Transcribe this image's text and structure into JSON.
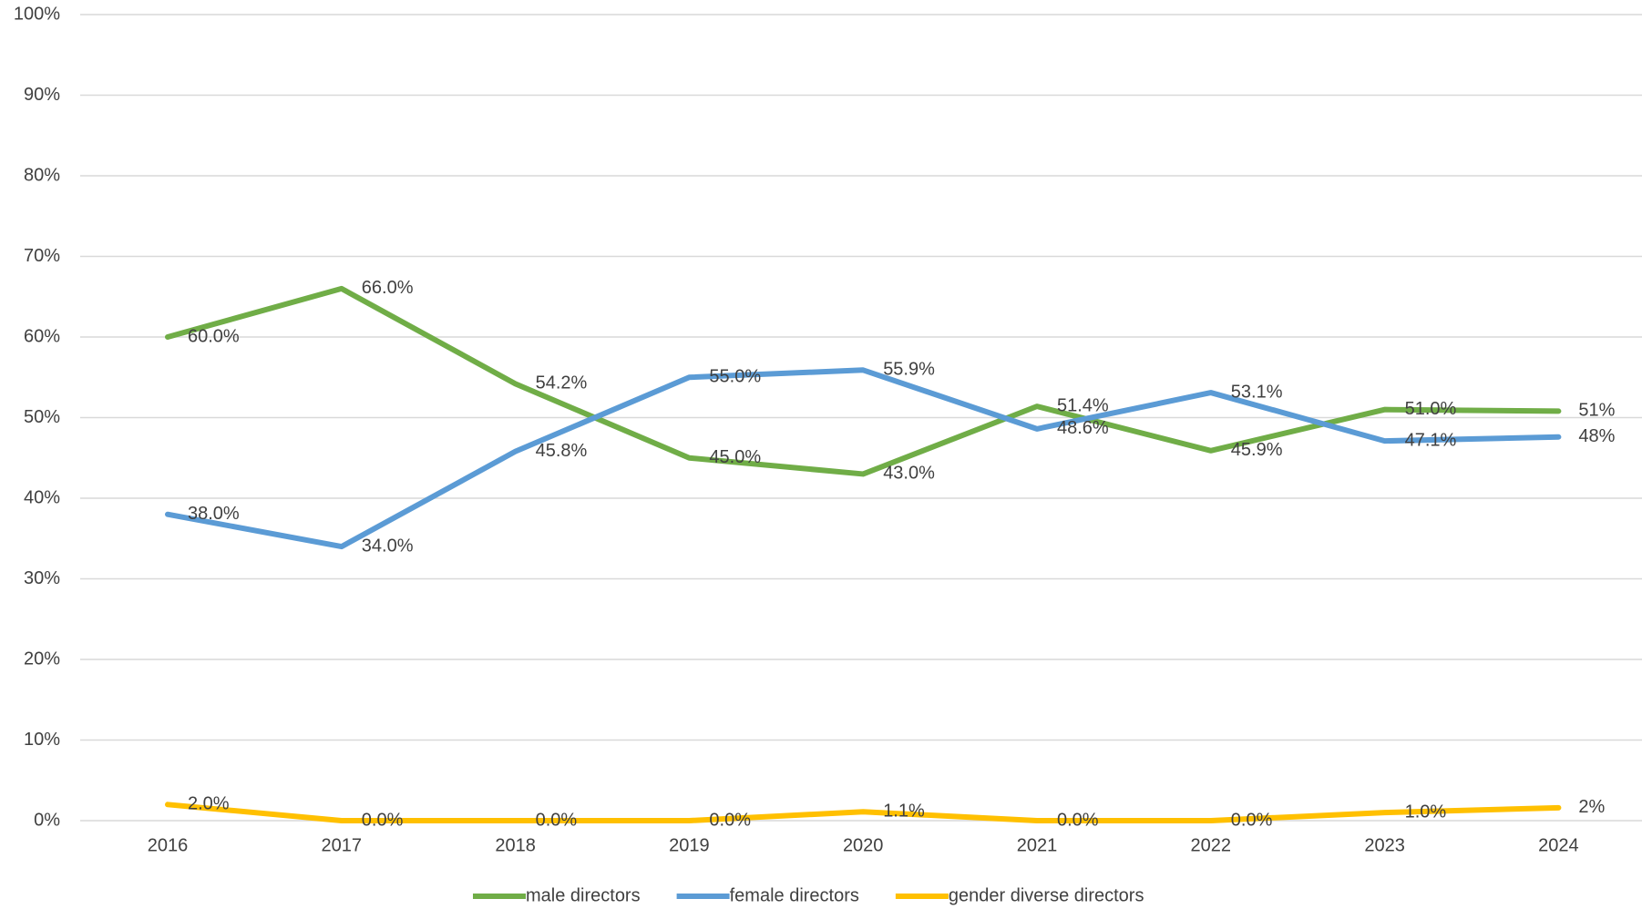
{
  "chart_data": {
    "type": "line",
    "categories": [
      "2016",
      "2017",
      "2018",
      "2019",
      "2020",
      "2021",
      "2022",
      "2023",
      "2024"
    ],
    "series": [
      {
        "name": "male directors",
        "color": "#70ad47",
        "values": [
          60.0,
          66.0,
          54.2,
          45.0,
          43.0,
          51.4,
          45.9,
          51.0,
          50.8
        ],
        "value_labels": [
          "60.0%",
          "66.0%",
          "54.2%",
          "45.0%",
          "43.0%",
          "51.4%",
          "45.9%",
          "51.0%",
          "51%"
        ]
      },
      {
        "name": "female directors",
        "color": "#5b9bd5",
        "values": [
          38.0,
          34.0,
          45.8,
          55.0,
          55.9,
          48.6,
          53.1,
          47.1,
          47.6
        ],
        "value_labels": [
          "38.0%",
          "34.0%",
          "45.8%",
          "55.0%",
          "55.9%",
          "48.6%",
          "53.1%",
          "47.1%",
          "48%"
        ]
      },
      {
        "name": "gender diverse directors",
        "color": "#ffc000",
        "values": [
          2.0,
          0.0,
          0.0,
          0.0,
          1.1,
          0.0,
          0.0,
          1.0,
          1.6
        ],
        "value_labels": [
          "2.0%",
          "0.0%",
          "0.0%",
          "0.0%",
          "1.1%",
          "0.0%",
          "0.0%",
          "1.0%",
          "2%"
        ]
      }
    ],
    "ylim": [
      0,
      100
    ],
    "yticks": [
      {
        "value": 0,
        "label": "0%"
      },
      {
        "value": 10,
        "label": "10%"
      },
      {
        "value": 20,
        "label": "20%"
      },
      {
        "value": 30,
        "label": "30%"
      },
      {
        "value": 40,
        "label": "40%"
      },
      {
        "value": 50,
        "label": "50%"
      },
      {
        "value": 60,
        "label": "60%"
      },
      {
        "value": 70,
        "label": "70%"
      },
      {
        "value": 80,
        "label": "80%"
      },
      {
        "value": 90,
        "label": "90%"
      },
      {
        "value": 100,
        "label": "100%"
      }
    ],
    "grid": true,
    "legend": "bottom"
  }
}
